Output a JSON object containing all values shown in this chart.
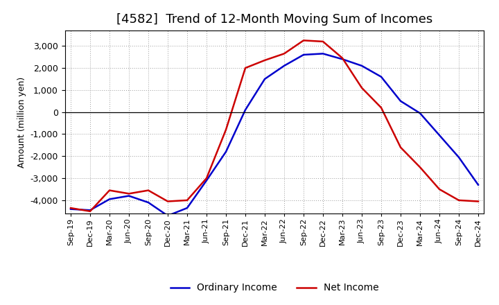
{
  "title": "[4582]  Trend of 12-Month Moving Sum of Incomes",
  "ylabel": "Amount (million yen)",
  "x_labels": [
    "Sep-19",
    "Dec-19",
    "Mar-20",
    "Jun-20",
    "Sep-20",
    "Dec-20",
    "Mar-21",
    "Jun-21",
    "Sep-21",
    "Dec-21",
    "Mar-22",
    "Jun-22",
    "Sep-22",
    "Dec-22",
    "Mar-23",
    "Jun-23",
    "Sep-23",
    "Dec-23",
    "Mar-24",
    "Jun-24",
    "Sep-24",
    "Dec-24"
  ],
  "ordinary_income": [
    -4400,
    -4450,
    -3950,
    -3800,
    -4100,
    -4700,
    -4350,
    -3100,
    -1800,
    100,
    1500,
    2100,
    2600,
    2650,
    2400,
    2100,
    1600,
    500,
    -50,
    -1050,
    -2050,
    -3300
  ],
  "net_income": [
    -4350,
    -4500,
    -3550,
    -3700,
    -3550,
    -4050,
    -4000,
    -3000,
    -800,
    2000,
    2350,
    2650,
    3250,
    3200,
    2450,
    1100,
    200,
    -1600,
    -2500,
    -3500,
    -4000,
    -4050
  ],
  "ordinary_income_color": "#0000cc",
  "net_income_color": "#cc0000",
  "ylim": [
    -4600,
    3700
  ],
  "yticks": [
    -4000,
    -3000,
    -2000,
    -1000,
    0,
    1000,
    2000,
    3000
  ],
  "background_color": "#ffffff",
  "plot_bg_color": "#ffffff",
  "grid_color": "#999999",
  "title_fontsize": 13,
  "legend_fontsize": 10,
  "tick_fontsize": 9,
  "ylabel_fontsize": 9
}
